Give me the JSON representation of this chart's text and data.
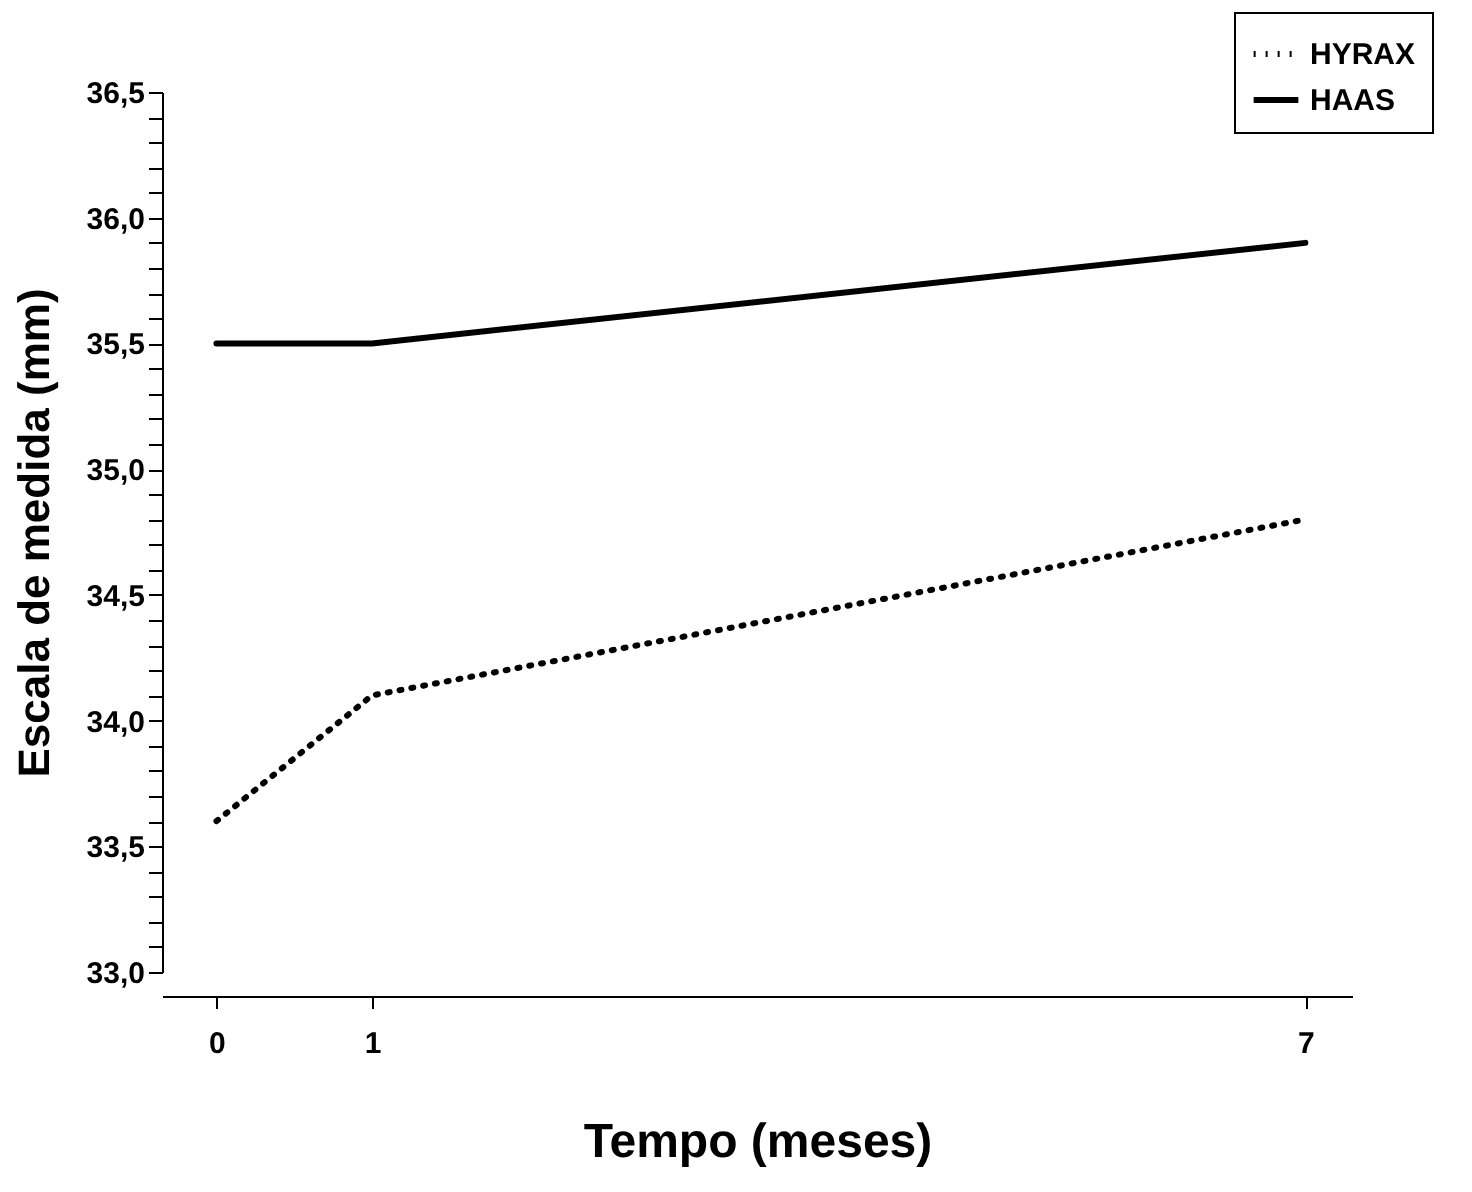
{
  "chart_data": {
    "type": "line",
    "xlabel": "Tempo (meses)",
    "ylabel": "Escala de medida (mm)",
    "x": [
      0,
      1,
      7
    ],
    "series": [
      {
        "name": "HYRAX",
        "color": "#000000",
        "values": [
          33.6,
          34.1,
          34.8
        ],
        "line_style": "dotted"
      },
      {
        "name": "HAAS",
        "color": "#000000",
        "values": [
          35.5,
          35.5,
          35.9
        ],
        "line_style": "solid"
      }
    ],
    "xlim": [
      -0.35,
      7.3
    ],
    "xticks": [
      0,
      1,
      7
    ],
    "ylim": [
      33.0,
      36.5
    ],
    "yticks": [
      {
        "value": 33.0,
        "label": "33,0"
      },
      {
        "value": 33.1,
        "label": null
      },
      {
        "value": 33.2,
        "label": null
      },
      {
        "value": 33.3,
        "label": null
      },
      {
        "value": 33.4,
        "label": null
      },
      {
        "value": 33.5,
        "label": "33,5"
      },
      {
        "value": 33.6,
        "label": null
      },
      {
        "value": 33.7,
        "label": null
      },
      {
        "value": 33.8,
        "label": null
      },
      {
        "value": 33.9,
        "label": null
      },
      {
        "value": 34.0,
        "label": "34,0"
      },
      {
        "value": 34.1,
        "label": null
      },
      {
        "value": 34.2,
        "label": null
      },
      {
        "value": 34.3,
        "label": null
      },
      {
        "value": 34.4,
        "label": null
      },
      {
        "value": 34.5,
        "label": "34,5"
      },
      {
        "value": 34.6,
        "label": null
      },
      {
        "value": 34.7,
        "label": null
      },
      {
        "value": 34.8,
        "label": null
      },
      {
        "value": 34.9,
        "label": null
      },
      {
        "value": 35.0,
        "label": "35,0"
      },
      {
        "value": 35.1,
        "label": null
      },
      {
        "value": 35.2,
        "label": null
      },
      {
        "value": 35.3,
        "label": null
      },
      {
        "value": 35.4,
        "label": null
      },
      {
        "value": 35.5,
        "label": "35,5"
      },
      {
        "value": 35.6,
        "label": null
      },
      {
        "value": 35.7,
        "label": null
      },
      {
        "value": 35.8,
        "label": null
      },
      {
        "value": 35.9,
        "label": null
      },
      {
        "value": 36.0,
        "label": "36,0"
      },
      {
        "value": 36.1,
        "label": null
      },
      {
        "value": 36.2,
        "label": null
      },
      {
        "value": 36.3,
        "label": null
      },
      {
        "value": 36.4,
        "label": null
      },
      {
        "value": 36.5,
        "label": "36,5"
      }
    ],
    "grid": false,
    "legend": "top right",
    "marker": "none"
  }
}
